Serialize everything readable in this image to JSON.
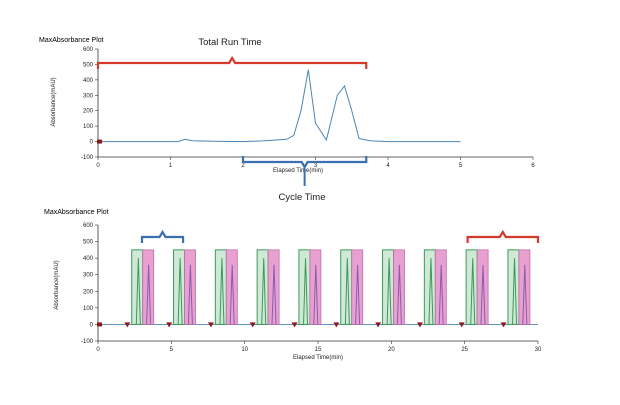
{
  "colors": {
    "title_green": "#2e8b3a",
    "trace_blue": "#4a86b8",
    "total_run_red": "#d23a2a",
    "cycle_blue": "#3a6fb0",
    "peak_green": "#3c9a5a",
    "peak_pink": "#e8a0d0",
    "peak_purple": "#8a5cb0",
    "marker_red": "#8b1a1a"
  },
  "annotations": {
    "total_run_time": "Total Run Time",
    "cycle_time": "Cycle Time"
  },
  "chart_data": [
    {
      "type": "line",
      "title": "MaxAbsorbance Plot",
      "xlabel": "Elapsed Time(min)",
      "ylabel": "Absorbance(mAU)",
      "xlim": [
        0,
        6
      ],
      "ylim": [
        -100,
        600
      ],
      "xticks": [
        0,
        1,
        2,
        3,
        4,
        5,
        6
      ],
      "yticks": [
        -100,
        0,
        100,
        200,
        300,
        400,
        500,
        600
      ],
      "grid": false,
      "x": [
        0,
        0.6,
        1.1,
        1.2,
        1.3,
        1.6,
        2.0,
        2.3,
        2.6,
        2.7,
        2.8,
        2.9,
        3.0,
        3.15,
        3.3,
        3.4,
        3.5,
        3.6,
        3.75,
        4.0,
        4.5,
        5.0
      ],
      "y": [
        0,
        0,
        0,
        15,
        5,
        2,
        0,
        5,
        15,
        40,
        200,
        465,
        120,
        10,
        300,
        360,
        200,
        20,
        5,
        0,
        0,
        0
      ],
      "brackets": [
        {
          "label": "Total Run Time",
          "x_start": 0,
          "x_end": 3.7
        },
        {
          "label": "Cycle Time",
          "x_start": 2.0,
          "x_end": 3.7
        }
      ]
    },
    {
      "type": "line",
      "title": "MaxAbsorbance Plot",
      "xlabel": "Elapsed Time(min)",
      "ylabel": "Absorbance(mAU)",
      "xlim": [
        0,
        30
      ],
      "ylim": [
        -100,
        600
      ],
      "xticks": [
        0,
        5,
        10,
        15,
        20,
        25,
        30
      ],
      "yticks": [
        -100,
        0,
        100,
        200,
        300,
        400,
        500,
        600
      ],
      "grid": false,
      "cycle_starts": [
        2.0,
        4.85,
        7.7,
        10.55,
        13.4,
        16.25,
        19.1,
        21.95,
        24.8,
        27.65
      ],
      "peak_height": 450,
      "brackets": [
        {
          "label": "",
          "x_start": 3.0,
          "x_end": 5.8
        },
        {
          "label": "",
          "x_start": 25.2,
          "x_end": 30
        }
      ]
    }
  ]
}
